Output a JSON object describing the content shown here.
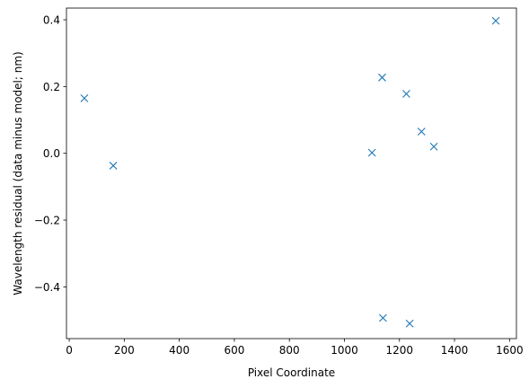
{
  "chart_data": {
    "type": "scatter",
    "title": "",
    "xlabel": "Pixel Coordinate",
    "ylabel": "Wavelength residual (data minus model; nm)",
    "xlim": [
      -10,
      1625
    ],
    "ylim": [
      -0.555,
      0.435
    ],
    "xticks": [
      0,
      200,
      400,
      600,
      800,
      1000,
      1200,
      1400,
      1600
    ],
    "yticks": [
      -0.4,
      -0.2,
      0.0,
      0.2,
      0.4
    ],
    "xtick_labels": [
      "0",
      "200",
      "400",
      "600",
      "800",
      "1000",
      "1200",
      "1400",
      "1600"
    ],
    "ytick_labels": [
      "−0.4",
      "−0.2",
      "0.0",
      "0.2",
      "0.4"
    ],
    "grid": false,
    "marker": "x",
    "color": "#1f77b4",
    "points": [
      {
        "x": 55,
        "y": 0.165
      },
      {
        "x": 160,
        "y": -0.037
      },
      {
        "x": 1100,
        "y": 0.002
      },
      {
        "x": 1137,
        "y": 0.227
      },
      {
        "x": 1140,
        "y": -0.493
      },
      {
        "x": 1225,
        "y": 0.178
      },
      {
        "x": 1237,
        "y": -0.51
      },
      {
        "x": 1280,
        "y": 0.065
      },
      {
        "x": 1325,
        "y": 0.02
      },
      {
        "x": 1550,
        "y": 0.397
      }
    ]
  }
}
